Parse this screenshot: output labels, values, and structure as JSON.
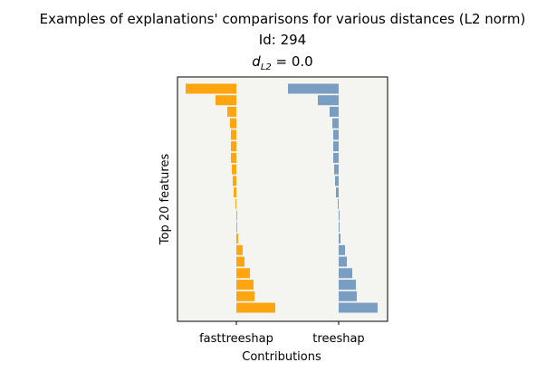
{
  "chart_data": {
    "type": "bar",
    "orientation": "horizontal",
    "title": "Examples of explanations' comparisons for various distances (L2 norm)",
    "subtitle": "Id: 294",
    "distance": {
      "symbol": "d",
      "subscript": "L2",
      "text": " = 0.0"
    },
    "ylabel": "Top 20 features",
    "xlabel": "Contributions",
    "background": "#f4f4f0",
    "series": [
      {
        "name": "fasttreeshap",
        "color": "#ffa510",
        "values": [
          -56,
          -23,
          -10,
          -7,
          -6,
          -6,
          -6,
          -5,
          -4,
          -3,
          -1,
          1,
          1,
          2,
          7,
          9,
          15,
          19,
          20,
          43
        ]
      },
      {
        "name": "treeshap",
        "color": "#7a9ec2",
        "values": [
          -56,
          -23,
          -10,
          -7,
          -6,
          -6,
          -6,
          -5,
          -4,
          -3,
          -1,
          1,
          1,
          2,
          7,
          9,
          15,
          19,
          20,
          43
        ]
      }
    ]
  }
}
